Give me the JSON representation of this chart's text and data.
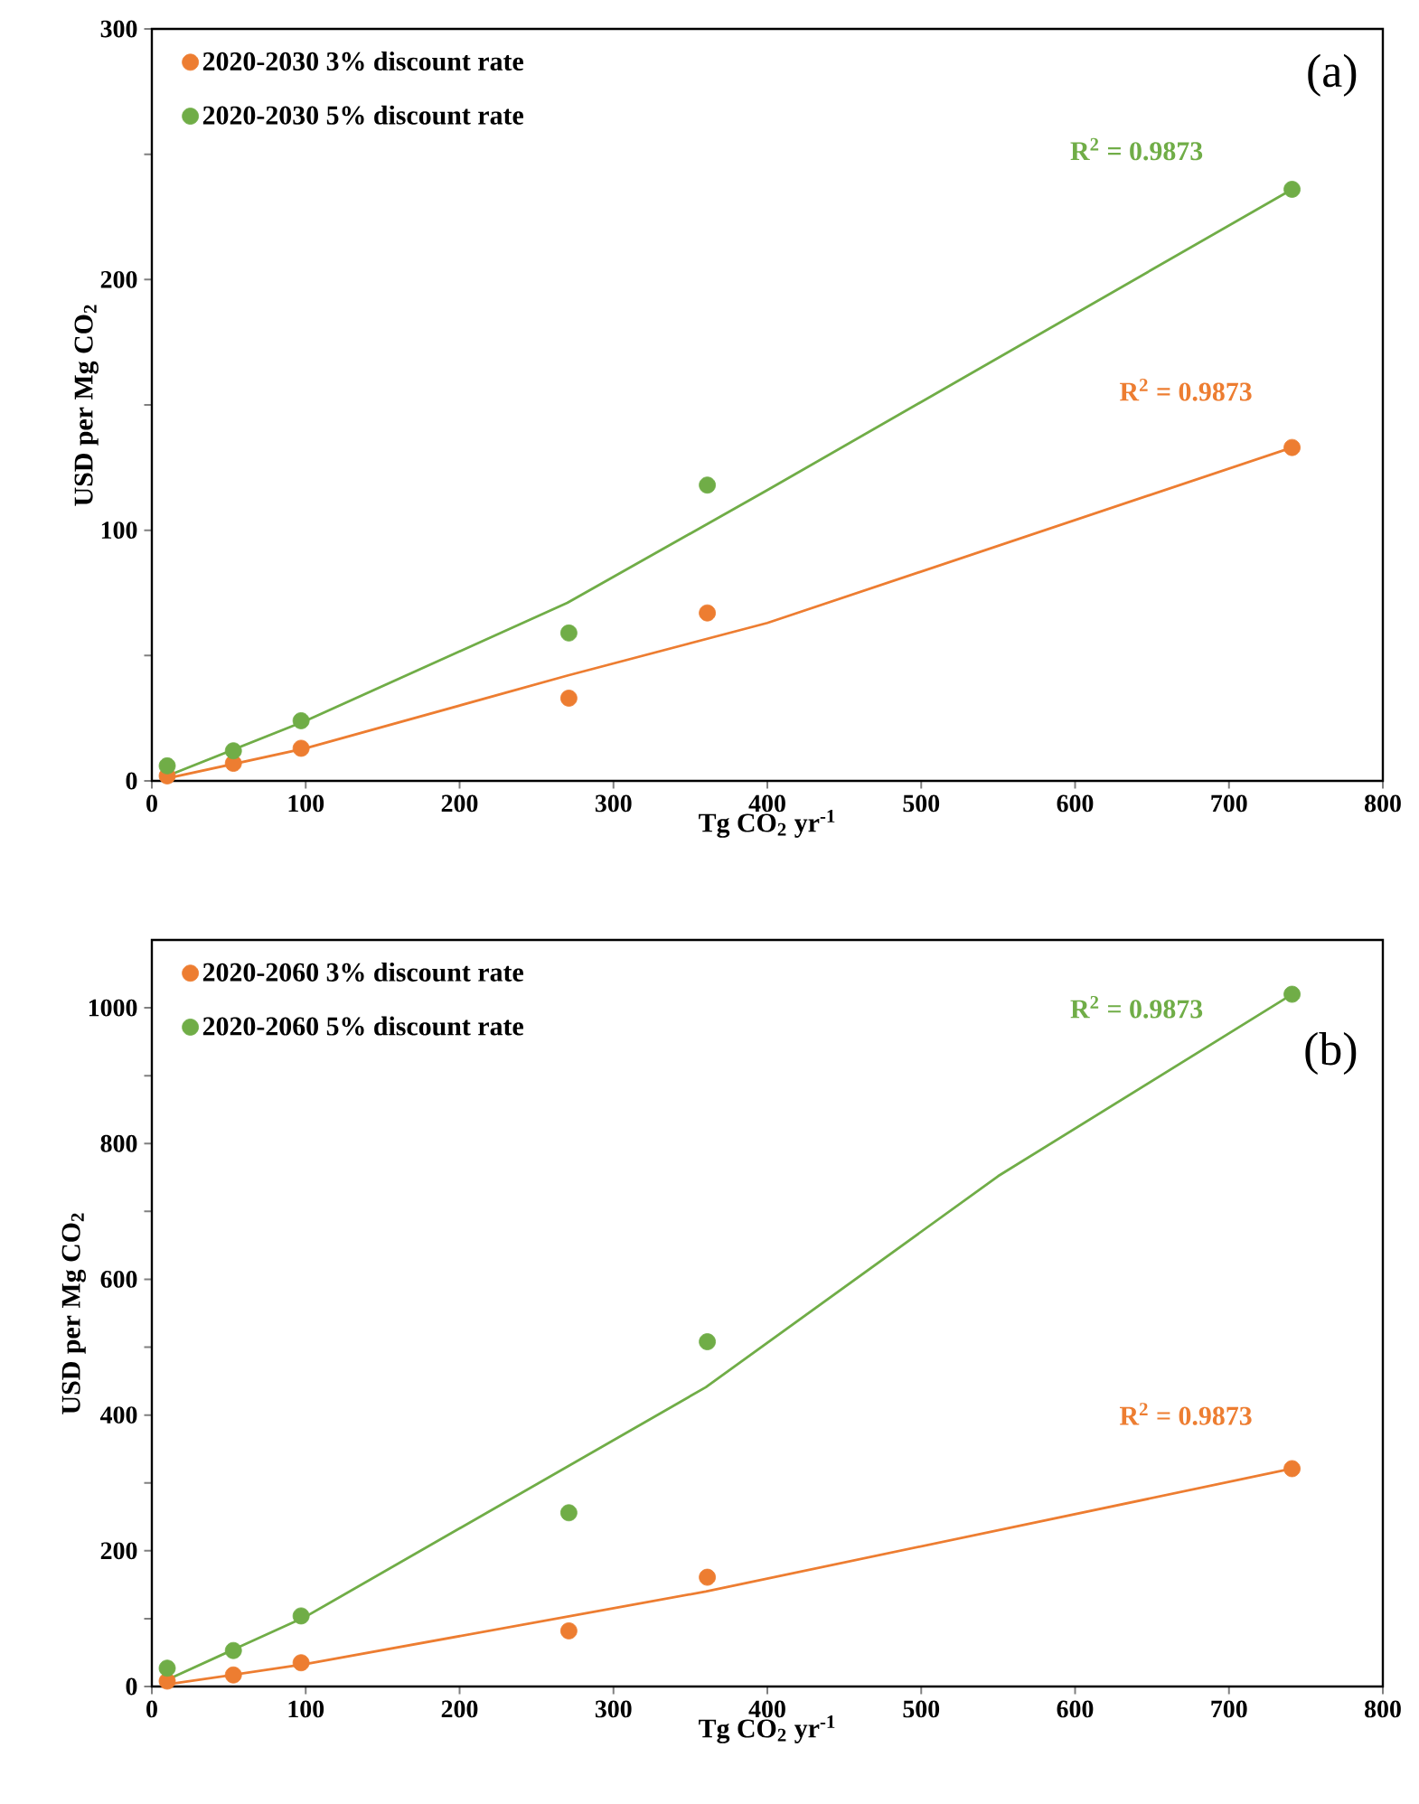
{
  "chart_data": [
    {
      "type": "scatter",
      "xlabel": "Tg CO$_{2}$ yr$^{-1}$",
      "ylabel": "USD per Mg CO$_{2}$",
      "x": [
        10,
        53,
        97,
        271,
        361,
        741
      ],
      "series": [
        {
          "name": "2020-2030 3% discount rate",
          "color": "#ed7d31",
          "values": [
            2,
            7,
            13,
            33,
            67,
            133
          ]
        },
        {
          "name": "2020-2030 5% discount rate",
          "color": "#70ad47",
          "values": [
            6,
            12,
            24,
            59,
            118,
            236
          ]
        },
        {
          "type": "line",
          "marker": "none",
          "color": "#ed7d31",
          "x": [
            10,
            100,
            270,
            400,
            741
          ],
          "values": [
            1,
            13,
            42,
            63,
            133
          ]
        },
        {
          "type": "line",
          "marker": "none",
          "color": "#70ad47",
          "x": [
            10,
            100,
            270,
            400,
            741
          ],
          "values": [
            2,
            24,
            71,
            116,
            236
          ]
        }
      ],
      "annotations": [
        "R$^{2}$ = 0.9873",
        "R$^{2}$ = 0.9873",
        "(a)"
      ],
      "xlim": [
        0,
        800
      ],
      "ylim": [
        0,
        300
      ],
      "xticks": [
        0,
        100,
        200,
        300,
        400,
        500,
        600,
        700,
        800
      ],
      "yticks": [
        0,
        {
          "value": 50,
          "label": null
        },
        100,
        {
          "value": 150,
          "label": null
        },
        200,
        {
          "value": 250,
          "label": null
        },
        300
      ],
      "marker": "circle",
      "legend": "top left",
      "grid": false
    },
    {
      "type": "scatter",
      "xlabel": "Tg CO$_{2}$ yr$^{-1}$",
      "ylabel": "USD per Mg CO$_{2}$",
      "x": [
        10,
        53,
        97,
        271,
        361,
        741
      ],
      "series": [
        {
          "name": "2020-2060 3% discount rate",
          "color": "#ed7d31",
          "values": [
            8,
            17,
            35,
            82,
            161,
            321
          ]
        },
        {
          "name": "2020-2060 5% discount rate",
          "color": "#70ad47",
          "values": [
            27,
            53,
            104,
            256,
            508,
            1020
          ]
        },
        {
          "type": "line",
          "marker": "none",
          "color": "#ed7d31",
          "x": [
            10,
            100,
            360,
            741
          ],
          "values": [
            3,
            33,
            140,
            321
          ]
        },
        {
          "type": "line",
          "marker": "none",
          "color": "#70ad47",
          "x": [
            10,
            100,
            360,
            550,
            741
          ],
          "values": [
            10,
            103,
            441,
            752,
            1020
          ]
        }
      ],
      "annotations": [
        "R$^{2}$ = 0.9873",
        "R$^{2}$ = 0.9873",
        "(b)"
      ],
      "xlim": [
        0,
        800
      ],
      "ylim": [
        0,
        1100
      ],
      "xticks": [
        0,
        100,
        200,
        300,
        400,
        500,
        600,
        700,
        800
      ],
      "yticks": [
        0,
        {
          "value": 100,
          "label": null
        },
        200,
        {
          "value": 300,
          "label": null
        },
        400,
        {
          "value": 500,
          "label": null
        },
        600,
        {
          "value": 700,
          "label": null
        },
        800,
        {
          "value": 900,
          "label": null
        },
        1000
      ],
      "marker": "circle",
      "legend": "top left",
      "grid": false
    }
  ]
}
